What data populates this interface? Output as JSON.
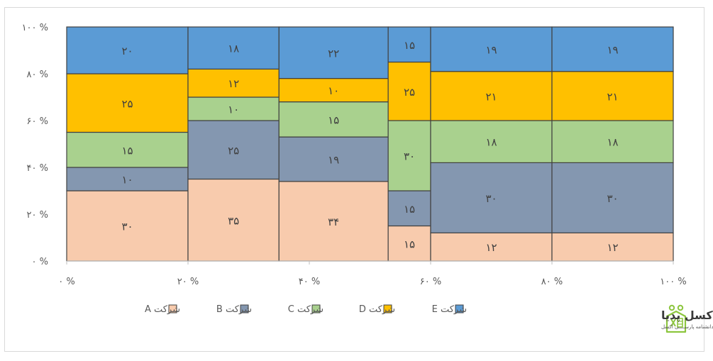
{
  "chart_data": {
    "type": "bar",
    "subtype": "marimekko",
    "title": "",
    "xlabel": "",
    "ylabel": "",
    "x_ticks": [
      "۰ %",
      "۲۰ %",
      "۴۰ %",
      "۶۰ %",
      "۸۰ %",
      "۱۰۰ %"
    ],
    "y_ticks": [
      "۰ %",
      "۲۰ %",
      "۴۰ %",
      "۶۰ %",
      "۸۰ %",
      "۱۰۰ %"
    ],
    "xlim": [
      0,
      100
    ],
    "ylim": [
      0,
      100
    ],
    "column_boundaries": [
      0,
      20,
      35,
      53,
      60,
      80,
      100
    ],
    "series": [
      {
        "name": "شرکت A",
        "color": "#f8cbad",
        "values": [
          30,
          35,
          34,
          15,
          12,
          12
        ],
        "labels": [
          "۳۰",
          "۳۵",
          "۳۴",
          "۱۵",
          "۱۲",
          "۱۲"
        ]
      },
      {
        "name": "شرکت B",
        "color": "#8497b0",
        "values": [
          10,
          25,
          19,
          15,
          30,
          30
        ],
        "labels": [
          "۱۰",
          "۲۵",
          "۱۹",
          "۱۵",
          "۳۰",
          "۳۰"
        ]
      },
      {
        "name": "شرکت C",
        "color": "#a9d18e",
        "values": [
          15,
          10,
          15,
          30,
          18,
          18
        ],
        "labels": [
          "۱۵",
          "۱۰",
          "۱۵",
          "۳۰",
          "۱۸",
          "۱۸"
        ]
      },
      {
        "name": "شرکت D",
        "color": "#ffc000",
        "values": [
          25,
          12,
          10,
          25,
          21,
          21
        ],
        "labels": [
          "۲۵",
          "۱۲",
          "۱۰",
          "۲۵",
          "۲۱",
          "۲۱"
        ]
      },
      {
        "name": "شرکت E",
        "color": "#5b9bd5",
        "values": [
          20,
          18,
          22,
          15,
          19,
          19
        ],
        "labels": [
          "۲۰",
          "۱۸",
          "۲۲",
          "۱۵",
          "۱۹",
          "۱۹"
        ]
      }
    ],
    "legend_position": "bottom"
  },
  "logo": {
    "title": "اکسل پدیا",
    "subtitle": "دانشنامه پارســــی اکسل"
  }
}
